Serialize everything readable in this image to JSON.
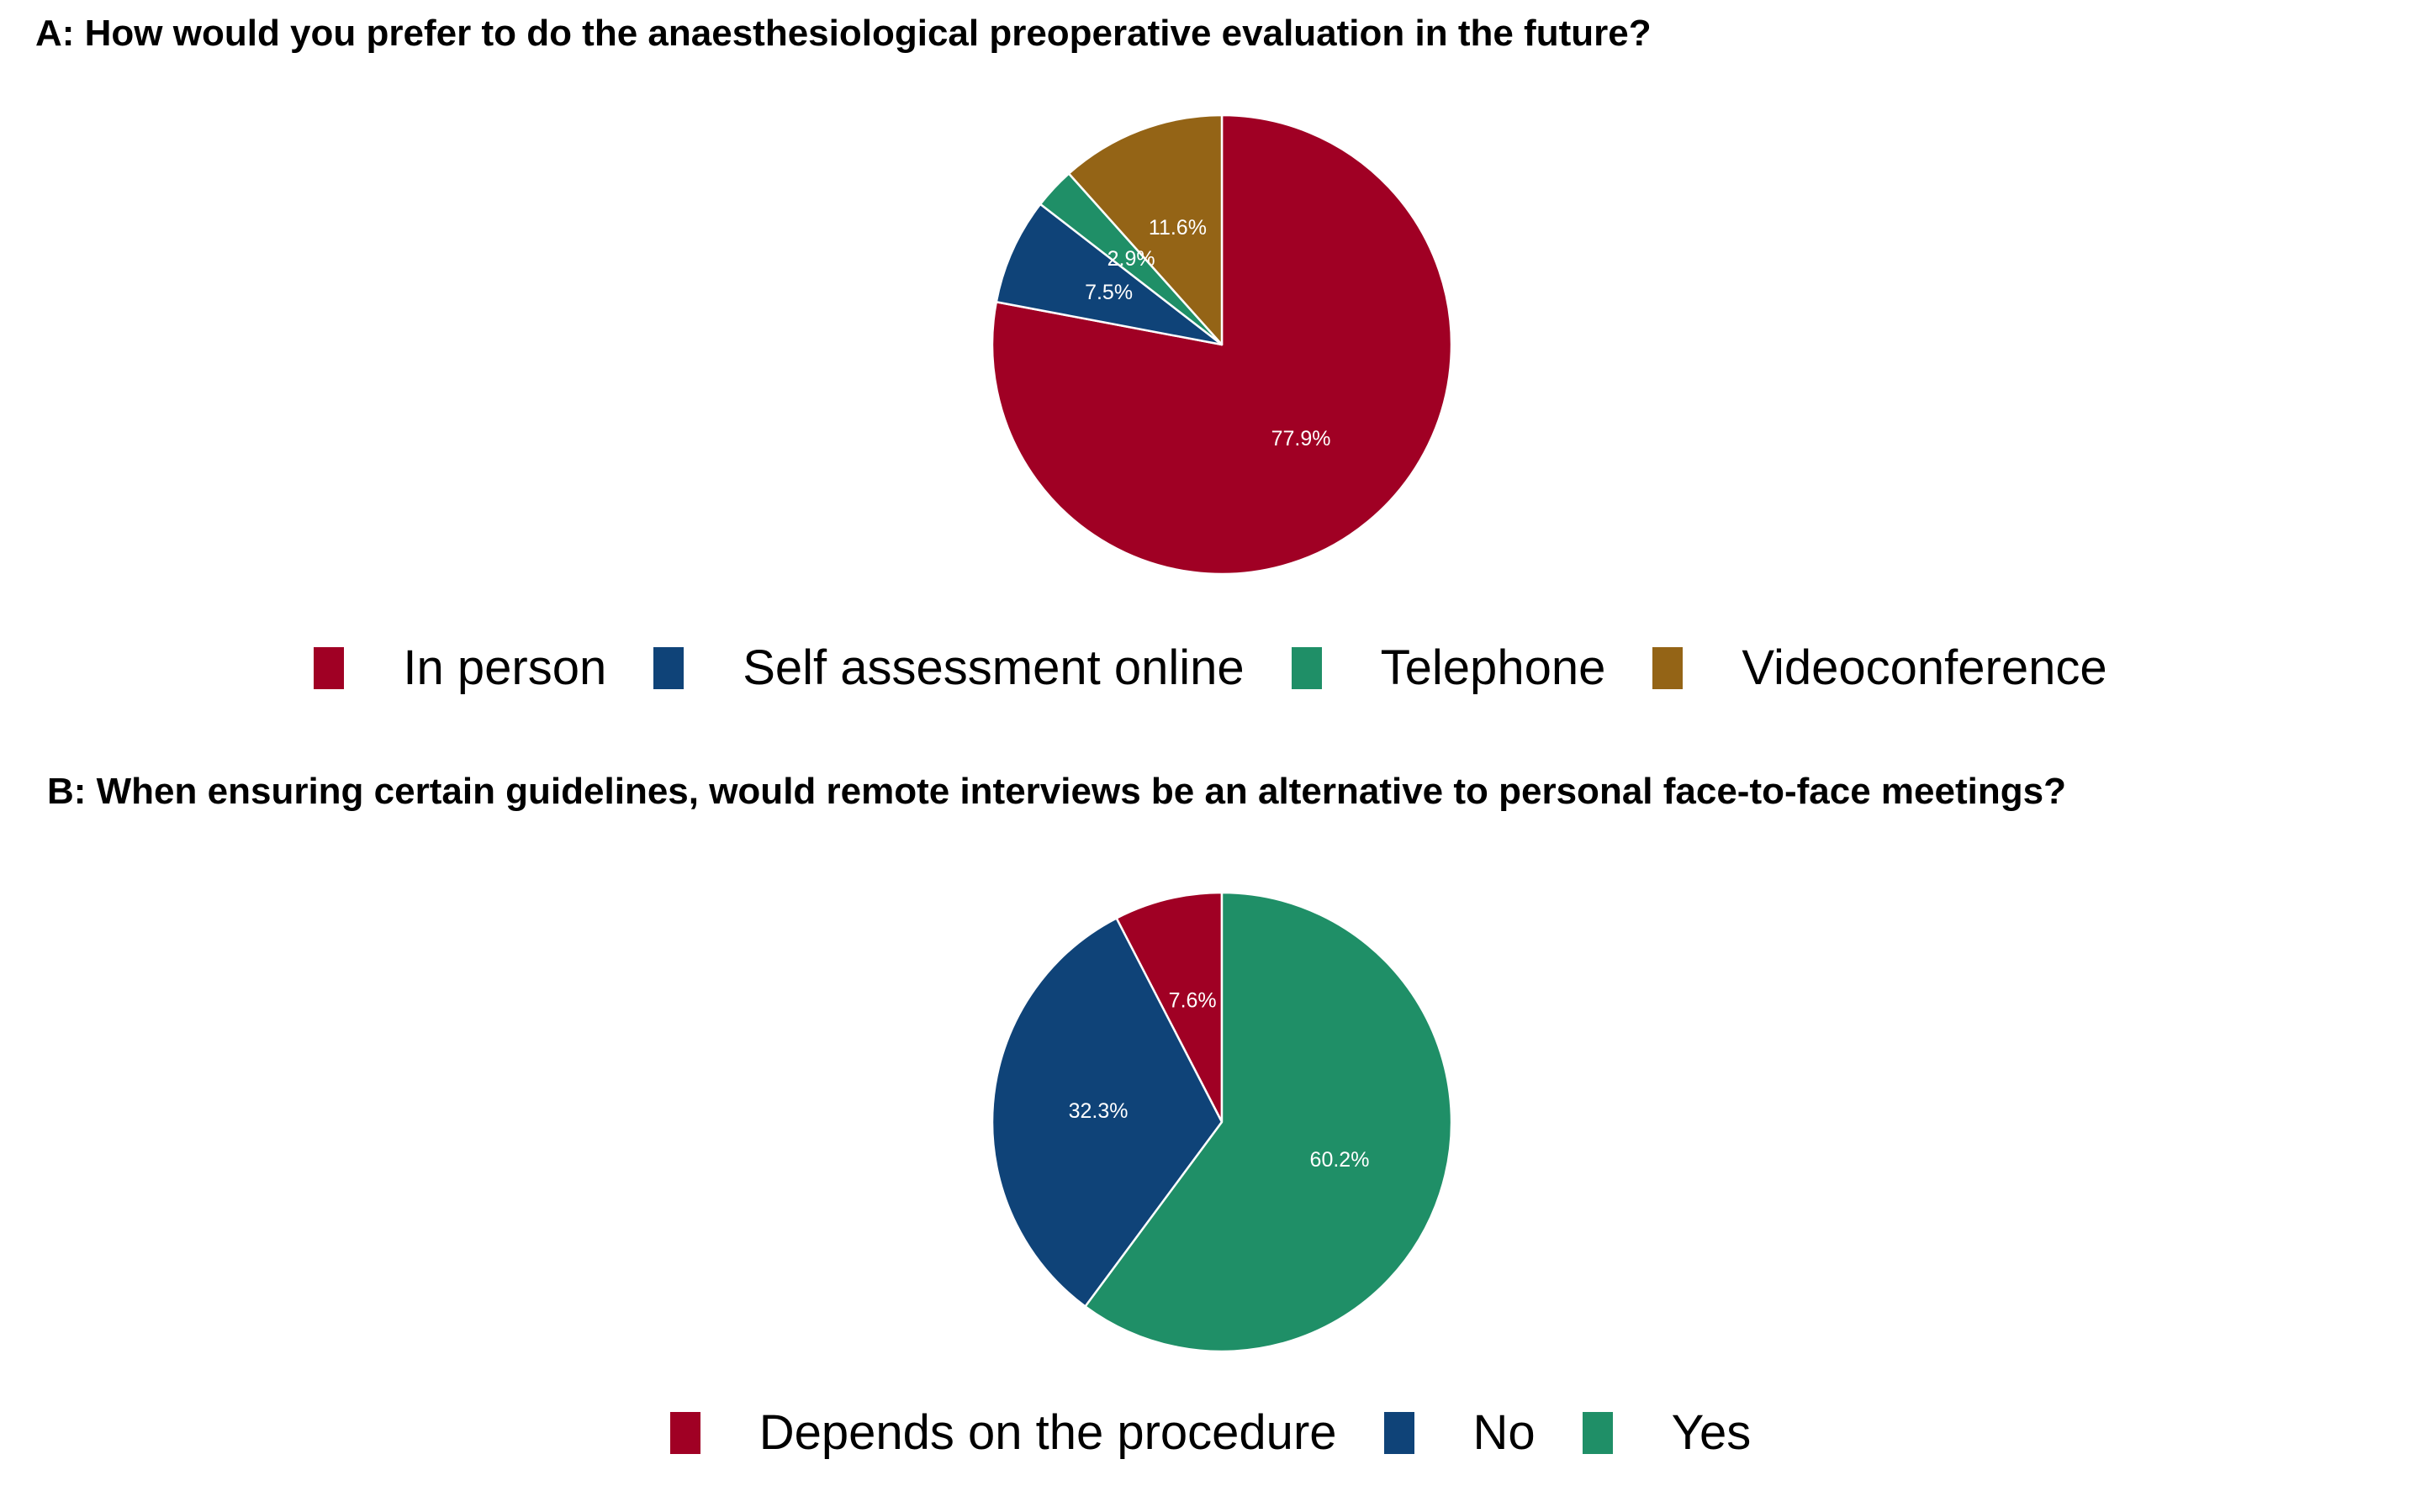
{
  "chart_data": [
    {
      "type": "pie",
      "title": "A:  How would you prefer to do the anaesthesiological preoperative evaluation in the future?",
      "categories": [
        "In person",
        "Self assessment online",
        "Telephone",
        "Videoconference"
      ],
      "values": [
        77.9,
        7.5,
        2.9,
        11.6
      ],
      "labels": [
        "77.9%",
        "7.5%",
        "2.9%",
        "11.6%"
      ],
      "colors": [
        "#a00024",
        "#0f4378",
        "#1f8f67",
        "#946416"
      ],
      "legend_position": "bottom"
    },
    {
      "type": "pie",
      "title": "B:  When ensuring certain guidelines, would remote interviews be an alternative to personal face-to-face meetings?",
      "categories": [
        "Depends on the procedure",
        "No",
        "Yes"
      ],
      "values": [
        7.6,
        32.3,
        60.2
      ],
      "labels": [
        "7.6%",
        "32.3%",
        "60.2%"
      ],
      "colors": [
        "#a00024",
        "#0f4378",
        "#1f8f67"
      ],
      "legend_position": "bottom"
    }
  ]
}
